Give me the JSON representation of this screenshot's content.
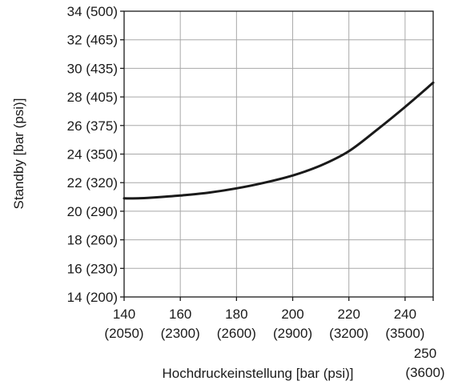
{
  "chart_data": {
    "type": "line",
    "title": "",
    "xlabel": "Hochdruckeinstellung [bar (psi)]",
    "ylabel": "Standby [bar (psi)]",
    "xlim": [
      140,
      250
    ],
    "ylim": [
      14,
      34
    ],
    "grid": true,
    "x_ticks": [
      {
        "value": 140,
        "label": "140",
        "sublabel": "(2050)"
      },
      {
        "value": 160,
        "label": "160",
        "sublabel": "(2300)"
      },
      {
        "value": 180,
        "label": "180",
        "sublabel": "(2600)"
      },
      {
        "value": 200,
        "label": "200",
        "sublabel": "(2900)"
      },
      {
        "value": 220,
        "label": "220",
        "sublabel": "(3200)"
      },
      {
        "value": 240,
        "label": "240",
        "sublabel": "(3500)"
      },
      {
        "value": 250,
        "label": "250",
        "sublabel": "(3600)"
      }
    ],
    "y_ticks": [
      {
        "value": 14,
        "label": "14 (200)"
      },
      {
        "value": 16,
        "label": "16 (230)"
      },
      {
        "value": 18,
        "label": "18 (260)"
      },
      {
        "value": 20,
        "label": "20 (290)"
      },
      {
        "value": 22,
        "label": "22 (320)"
      },
      {
        "value": 24,
        "label": "24 (350)"
      },
      {
        "value": 26,
        "label": "26 (375)"
      },
      {
        "value": 28,
        "label": "28 (405)"
      },
      {
        "value": 30,
        "label": "30 (435)"
      },
      {
        "value": 32,
        "label": "32 (465)"
      },
      {
        "value": 34,
        "label": "34 (500)"
      }
    ],
    "series": [
      {
        "color": "#1a1a1a",
        "x": [
          140,
          145,
          150,
          160,
          170,
          180,
          190,
          200,
          210,
          220,
          230,
          240,
          250
        ],
        "y": [
          20.9,
          20.9,
          20.95,
          21.1,
          21.3,
          21.6,
          22.0,
          22.5,
          23.2,
          24.2,
          25.7,
          27.3,
          29.0
        ]
      }
    ]
  }
}
